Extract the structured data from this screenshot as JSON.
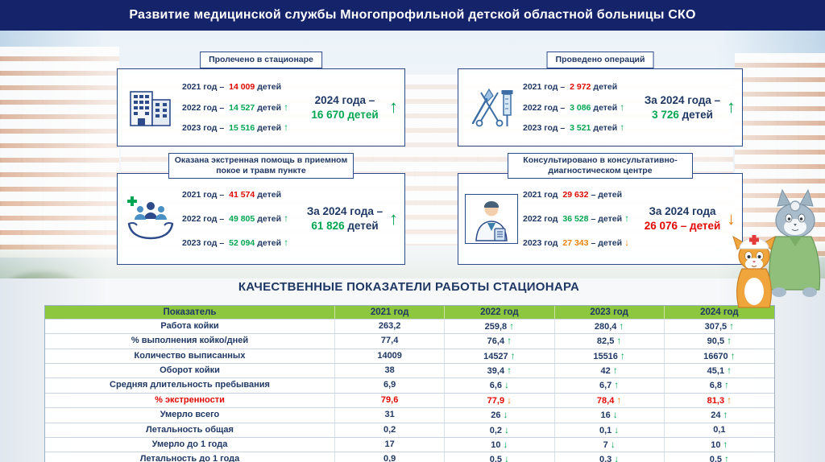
{
  "colors": {
    "navy": "#1f3864",
    "red": "#e10600",
    "green": "#00a651",
    "orange": "#e8820c",
    "header_bg": "#15236b",
    "table_header_bg": "#8dc63f"
  },
  "header": {
    "title": "Развитие медицинской службы Многопрофильной детской областной больницы СКО"
  },
  "cards": [
    {
      "title": "Пролечено в стационаре",
      "icon": "hospital-building-icon",
      "rows": [
        {
          "label": "2021 год –",
          "value": "14 009",
          "unit": "детей",
          "value_color": "red",
          "arrow": null
        },
        {
          "label": "2022 год –",
          "value": "14 527",
          "unit": "детей",
          "value_color": "green",
          "arrow": {
            "dir": "up",
            "color": "green"
          }
        },
        {
          "label": "2023 год –",
          "value": "15 516",
          "unit": "детей",
          "value_color": "green",
          "arrow": {
            "dir": "up",
            "color": "green"
          }
        }
      ],
      "total": {
        "parts": [
          {
            "text": "2024 года – ",
            "color": "navy"
          },
          {
            "text": "16 670 детей",
            "color": "green"
          }
        ],
        "arrow": {
          "dir": "up",
          "color": "green"
        }
      }
    },
    {
      "title": "Проведено операций",
      "icon": "surgical-instruments-icon",
      "rows": [
        {
          "label": "2021 год –",
          "value": "2 972",
          "unit": "детей",
          "value_color": "red",
          "arrow": null
        },
        {
          "label": "2022 год –",
          "value": "3 086",
          "unit": "детей",
          "value_color": "green",
          "arrow": {
            "dir": "up",
            "color": "green"
          }
        },
        {
          "label": "2023 год –",
          "value": "3 521",
          "unit": "детей",
          "value_color": "green",
          "arrow": {
            "dir": "up",
            "color": "green"
          }
        }
      ],
      "total": {
        "parts": [
          {
            "text": "За 2024 года – ",
            "color": "navy"
          },
          {
            "text": "3 726",
            "color": "green"
          },
          {
            "text": " детей",
            "color": "navy"
          }
        ],
        "arrow": {
          "dir": "up",
          "color": "green"
        }
      }
    },
    {
      "title": "Оказана экстренная помощь в приемном покое и травм пункте",
      "icon": "helping-hands-icon",
      "rows": [
        {
          "label": "2021 год –",
          "value": "41 574",
          "unit": "детей",
          "value_color": "red",
          "arrow": null
        },
        {
          "label": "2022 год –",
          "value": "49 805",
          "unit": "детей",
          "value_color": "green",
          "arrow": {
            "dir": "up",
            "color": "green"
          }
        },
        {
          "label": "2023 год –",
          "value": "52 094",
          "unit": "детей",
          "value_color": "green",
          "arrow": {
            "dir": "up",
            "color": "green"
          }
        }
      ],
      "total": {
        "parts": [
          {
            "text": "За 2024 года – ",
            "color": "navy"
          },
          {
            "text": "61 826",
            "color": "green"
          },
          {
            "text": " детей",
            "color": "navy"
          }
        ],
        "arrow": {
          "dir": "up",
          "color": "green"
        }
      }
    },
    {
      "title": "Консультировано в консультативно-диагностическом центре",
      "icon": "doctor-consultation-icon",
      "rows": [
        {
          "label": "2021 год",
          "value": "29 632",
          "unit": "– детей",
          "value_color": "red",
          "arrow": null
        },
        {
          "label": "2022 год",
          "value": "36 528",
          "unit": "– детей",
          "value_color": "green",
          "arrow": {
            "dir": "up",
            "color": "green"
          }
        },
        {
          "label": "2023 год",
          "value": "27 343",
          "unit": "– детей",
          "value_color": "orange",
          "arrow": {
            "dir": "down",
            "color": "orange"
          }
        }
      ],
      "total": {
        "parts": [
          {
            "text": "За 2024 года ",
            "color": "navy"
          },
          {
            "text": "26 076",
            "color": "red"
          },
          {
            "text": " – детей",
            "color": "red"
          }
        ],
        "arrow": {
          "dir": "down",
          "color": "orange"
        }
      }
    }
  ],
  "section_title": "КАЧЕСТВЕННЫЕ ПОКАЗАТЕЛИ РАБОТЫ СТАЦИОНАРА",
  "table": {
    "headers": [
      "Показатель",
      "2021 год",
      "2022 год",
      "2023 год",
      "2024 год"
    ],
    "rows": [
      {
        "label": "Работа койки",
        "cells": [
          {
            "v": "263,2"
          },
          {
            "v": "259,8",
            "arrow": "up",
            "ac": "green"
          },
          {
            "v": "280,4",
            "arrow": "up",
            "ac": "green"
          },
          {
            "v": "307,5",
            "arrow": "up",
            "ac": "green"
          }
        ]
      },
      {
        "label": "% выполнения койко/дней",
        "cells": [
          {
            "v": "77,4"
          },
          {
            "v": "76,4",
            "arrow": "up",
            "ac": "green"
          },
          {
            "v": "82,5",
            "arrow": "up",
            "ac": "green"
          },
          {
            "v": "90,5",
            "arrow": "up",
            "ac": "green"
          }
        ]
      },
      {
        "label": "Количество выписанных",
        "cells": [
          {
            "v": "14009"
          },
          {
            "v": "14527",
            "arrow": "up",
            "ac": "green"
          },
          {
            "v": "15516",
            "arrow": "up",
            "ac": "green"
          },
          {
            "v": "16670",
            "arrow": "up",
            "ac": "green"
          }
        ]
      },
      {
        "label": "Оборот койки",
        "cells": [
          {
            "v": "38"
          },
          {
            "v": "39,4",
            "arrow": "up",
            "ac": "green"
          },
          {
            "v": "42",
            "arrow": "up",
            "ac": "green"
          },
          {
            "v": "45,1",
            "arrow": "up",
            "ac": "green"
          }
        ]
      },
      {
        "label": "Средняя длительность пребывания",
        "cells": [
          {
            "v": "6,9"
          },
          {
            "v": "6,6",
            "arrow": "down",
            "ac": "green"
          },
          {
            "v": "6,7",
            "arrow": "up",
            "ac": "green"
          },
          {
            "v": "6,8",
            "arrow": "up",
            "ac": "green"
          }
        ]
      },
      {
        "label": "% экстренности",
        "label_color": "red",
        "value_color": "red",
        "cells": [
          {
            "v": "79,6"
          },
          {
            "v": "77,9",
            "arrow": "down",
            "ac": "orange"
          },
          {
            "v": "78,4",
            "arrow": "up",
            "ac": "orange"
          },
          {
            "v": "81,3",
            "arrow": "up",
            "ac": "orange"
          }
        ]
      },
      {
        "label": "Умерло всего",
        "cells": [
          {
            "v": "31"
          },
          {
            "v": "26",
            "arrow": "down",
            "ac": "green"
          },
          {
            "v": "16",
            "arrow": "down",
            "ac": "green"
          },
          {
            "v": "24",
            "arrow": "up",
            "ac": "green"
          }
        ]
      },
      {
        "label": "Летальность общая",
        "cells": [
          {
            "v": "0,2"
          },
          {
            "v": "0,2",
            "arrow": "down",
            "ac": "green"
          },
          {
            "v": "0,1",
            "arrow": "down",
            "ac": "green"
          },
          {
            "v": "0,1"
          }
        ]
      },
      {
        "label": "Умерло до 1 года",
        "cells": [
          {
            "v": "17"
          },
          {
            "v": "10",
            "arrow": "down",
            "ac": "green"
          },
          {
            "v": "7",
            "arrow": "down",
            "ac": "green"
          },
          {
            "v": "10",
            "arrow": "up",
            "ac": "green"
          }
        ]
      },
      {
        "label": "Летальность до 1 года",
        "cells": [
          {
            "v": "0,9"
          },
          {
            "v": "0,5",
            "arrow": "down",
            "ac": "green"
          },
          {
            "v": "0,3",
            "arrow": "down",
            "ac": "green"
          },
          {
            "v": "0,5",
            "arrow": "up",
            "ac": "green"
          }
        ]
      }
    ]
  }
}
